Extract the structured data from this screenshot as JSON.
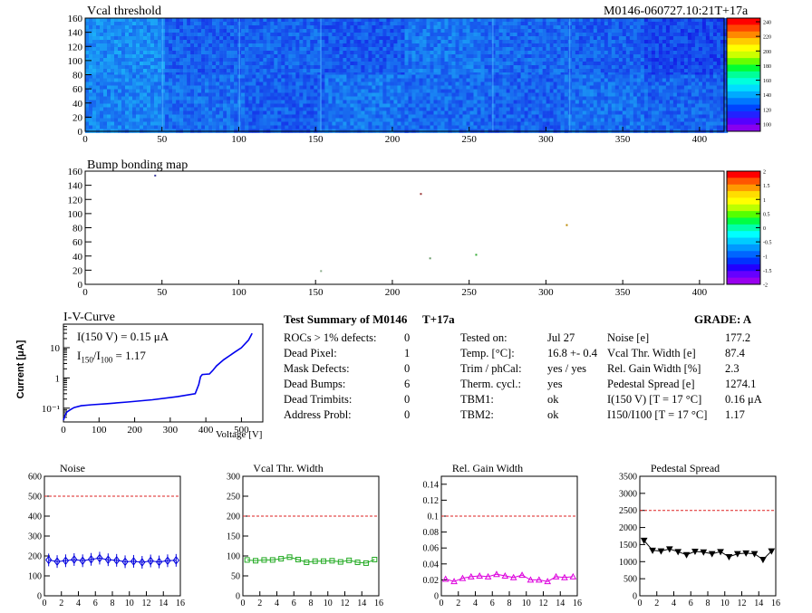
{
  "header": {
    "map_title": "Vcal threshold",
    "module_id": "M0146-060727.10:21T+17a",
    "bump_title": "Bump bonding map"
  },
  "iv": {
    "title": "I-V-Curve",
    "annotation_1": "I(150 V) = 0.15 μA",
    "annotation_2_main": "I",
    "annotation_2_sub1": "150",
    "annotation_2_slash": "/I",
    "annotation_2_sub2": "100",
    "annotation_2_val": " =  1.17",
    "ylabel": "Current [μA]",
    "xlabel": "Voltage [V]"
  },
  "summary": {
    "title": "Test Summary of M0146",
    "temp_tag": "T+17a",
    "grade": "GRADE:  A",
    "left": [
      {
        "label": "ROCs > 1% defects:",
        "value": "0"
      },
      {
        "label": "Dead Pixel:",
        "value": "1"
      },
      {
        "label": "Mask Defects:",
        "value": "0"
      },
      {
        "label": "Dead Bumps:",
        "value": "6"
      },
      {
        "label": "Dead Trimbits:",
        "value": "0"
      },
      {
        "label": "Address Probl:",
        "value": "0"
      }
    ],
    "middle": [
      {
        "label": "Tested on:",
        "value": "Jul 27"
      },
      {
        "label": "Temp. [°C]:",
        "value": "16.8 +- 0.4"
      },
      {
        "label": "Trim / phCal:",
        "value": "yes / yes"
      },
      {
        "label": "Therm. cycl.:",
        "value": "yes"
      },
      {
        "label": "TBM1:",
        "value": "ok"
      },
      {
        "label": "TBM2:",
        "value": "ok"
      }
    ],
    "right": [
      {
        "label": "Noise [e]",
        "value": "177.2"
      },
      {
        "label": "Vcal Thr. Width [e]",
        "value": "87.4"
      },
      {
        "label": "Rel. Gain Width [%]",
        "value": "2.3"
      },
      {
        "label": "Pedestal Spread [e]",
        "value": "1274.1"
      },
      {
        "label": "I(150 V) [T = 17 °C]",
        "value": "0.16 μA"
      },
      {
        "label": "I150/I100  [T = 17 °C]",
        "value": "1.17"
      }
    ]
  },
  "chart_data": [
    {
      "type": "heatmap",
      "title": "Vcal threshold",
      "x_range": [
        0,
        416
      ],
      "y_range": [
        0,
        160
      ],
      "x_ticks": [
        0,
        50,
        100,
        150,
        200,
        250,
        300,
        350,
        400
      ],
      "y_ticks": [
        0,
        20,
        40,
        60,
        80,
        100,
        120,
        140,
        160
      ],
      "color_scale": {
        "min": 90,
        "max": 245,
        "ticks": [
          100,
          120,
          140,
          160,
          180,
          200,
          220,
          240
        ]
      },
      "roc_columns": 8,
      "roc_rows": 2,
      "roc_mean_values": {
        "top": [
          150,
          125,
          128,
          122,
          138,
          130,
          125,
          112
        ],
        "bottom": [
          145,
          132,
          125,
          138,
          132,
          127,
          135,
          128
        ]
      }
    },
    {
      "type": "heatmap",
      "title": "Bump bonding map",
      "x_range": [
        0,
        416
      ],
      "y_range": [
        0,
        160
      ],
      "x_ticks": [
        0,
        50,
        100,
        150,
        200,
        250,
        300,
        350,
        400
      ],
      "y_ticks": [
        0,
        20,
        40,
        60,
        80,
        100,
        120,
        140,
        160
      ],
      "color_scale": {
        "min": -2,
        "max": 2,
        "ticks": [
          -2,
          -1.5,
          -1,
          -0.5,
          0,
          0.5,
          1,
          1.5,
          2
        ]
      },
      "defects": [
        {
          "x": 45,
          "y": 155,
          "color": "#3c3c9c"
        },
        {
          "x": 218,
          "y": 129,
          "color": "#993333"
        },
        {
          "x": 313,
          "y": 85,
          "color": "#bb8800"
        },
        {
          "x": 254,
          "y": 43,
          "color": "#33aa33"
        },
        {
          "x": 224,
          "y": 38,
          "color": "#669966"
        },
        {
          "x": 153,
          "y": 20,
          "color": "#88aa88"
        }
      ]
    },
    {
      "type": "line",
      "title": "I-V-Curve",
      "xlabel": "Voltage [V]",
      "ylabel": "Current [μA]",
      "xlim": [
        0,
        560
      ],
      "ylim": [
        0.035,
        60
      ],
      "y_scale": "log",
      "x_ticks": [
        0,
        100,
        200,
        300,
        400,
        500
      ],
      "y_tick_labels": [
        "10⁻¹",
        "1",
        "10"
      ],
      "color": "#0000ee",
      "x": [
        0,
        5,
        10,
        20,
        30,
        50,
        80,
        120,
        180,
        250,
        320,
        370,
        380,
        385,
        390,
        410,
        420,
        430,
        450,
        480,
        500,
        520,
        530
      ],
      "y": [
        0.04,
        0.06,
        0.075,
        0.09,
        0.105,
        0.12,
        0.13,
        0.14,
        0.16,
        0.19,
        0.24,
        0.3,
        0.6,
        1.1,
        1.3,
        1.35,
        1.8,
        2.5,
        4,
        7,
        10,
        18,
        30
      ]
    },
    {
      "type": "line",
      "title": "Noise",
      "xlim": [
        0,
        16
      ],
      "ylim": [
        0,
        600
      ],
      "x_ticks": [
        0,
        2,
        4,
        6,
        8,
        10,
        12,
        14,
        16
      ],
      "y_ticks": [
        0,
        100,
        200,
        300,
        400,
        500,
        600
      ],
      "threshold": 500,
      "color": "#0000dd",
      "marker": "diamond",
      "x": [
        0.5,
        1.5,
        2.5,
        3.5,
        4.5,
        5.5,
        6.5,
        7.5,
        8.5,
        9.5,
        10.5,
        11.5,
        12.5,
        13.5,
        14.5,
        15.5
      ],
      "y": [
        180,
        172,
        176,
        182,
        176,
        183,
        189,
        181,
        178,
        171,
        173,
        168,
        175,
        170,
        176,
        178
      ]
    },
    {
      "type": "line",
      "title": "Vcal Thr. Width",
      "xlim": [
        0,
        16
      ],
      "ylim": [
        0,
        300
      ],
      "x_ticks": [
        0,
        2,
        4,
        6,
        8,
        10,
        12,
        14,
        16
      ],
      "y_ticks": [
        0,
        50,
        100,
        150,
        200,
        250,
        300
      ],
      "threshold": 200,
      "color": "#22aa22",
      "marker": "square",
      "x": [
        0.5,
        1.5,
        2.5,
        3.5,
        4.5,
        5.5,
        6.5,
        7.5,
        8.5,
        9.5,
        10.5,
        11.5,
        12.5,
        13.5,
        14.5,
        15.5
      ],
      "y": [
        90,
        88,
        90,
        90,
        93,
        97,
        91,
        84,
        87,
        87,
        88,
        85,
        89,
        84,
        82,
        91
      ]
    },
    {
      "type": "line",
      "title": "Rel. Gain Width",
      "xlim": [
        0,
        16
      ],
      "ylim": [
        0,
        0.15
      ],
      "x_ticks": [
        0,
        2,
        4,
        6,
        8,
        10,
        12,
        14,
        16
      ],
      "y_ticks": [
        0,
        0.02,
        0.04,
        0.06,
        0.08,
        0.1,
        0.12,
        0.14
      ],
      "threshold": 0.1,
      "color": "#dd00dd",
      "marker": "triangle",
      "x": [
        0.5,
        1.5,
        2.5,
        3.5,
        4.5,
        5.5,
        6.5,
        7.5,
        8.5,
        9.5,
        10.5,
        11.5,
        12.5,
        13.5,
        14.5,
        15.5
      ],
      "y": [
        0.021,
        0.018,
        0.022,
        0.024,
        0.025,
        0.024,
        0.027,
        0.025,
        0.023,
        0.026,
        0.02,
        0.02,
        0.018,
        0.024,
        0.023,
        0.024
      ]
    },
    {
      "type": "line",
      "title": "Pedestal Spread",
      "xlim": [
        0,
        16
      ],
      "ylim": [
        0,
        3500
      ],
      "x_ticks": [
        0,
        2,
        4,
        6,
        8,
        10,
        12,
        14,
        16
      ],
      "y_ticks": [
        0,
        500,
        1000,
        1500,
        2000,
        2500,
        3000,
        3500
      ],
      "threshold": 2500,
      "color": "#000000",
      "marker": "triangle-down",
      "x": [
        0.5,
        1.5,
        2.5,
        3.5,
        4.5,
        5.5,
        6.5,
        7.5,
        8.5,
        9.5,
        10.5,
        11.5,
        12.5,
        13.5,
        14.5,
        15.5
      ],
      "y": [
        1620,
        1330,
        1310,
        1370,
        1290,
        1200,
        1300,
        1280,
        1230,
        1290,
        1140,
        1230,
        1250,
        1230,
        1060,
        1310
      ]
    }
  ]
}
